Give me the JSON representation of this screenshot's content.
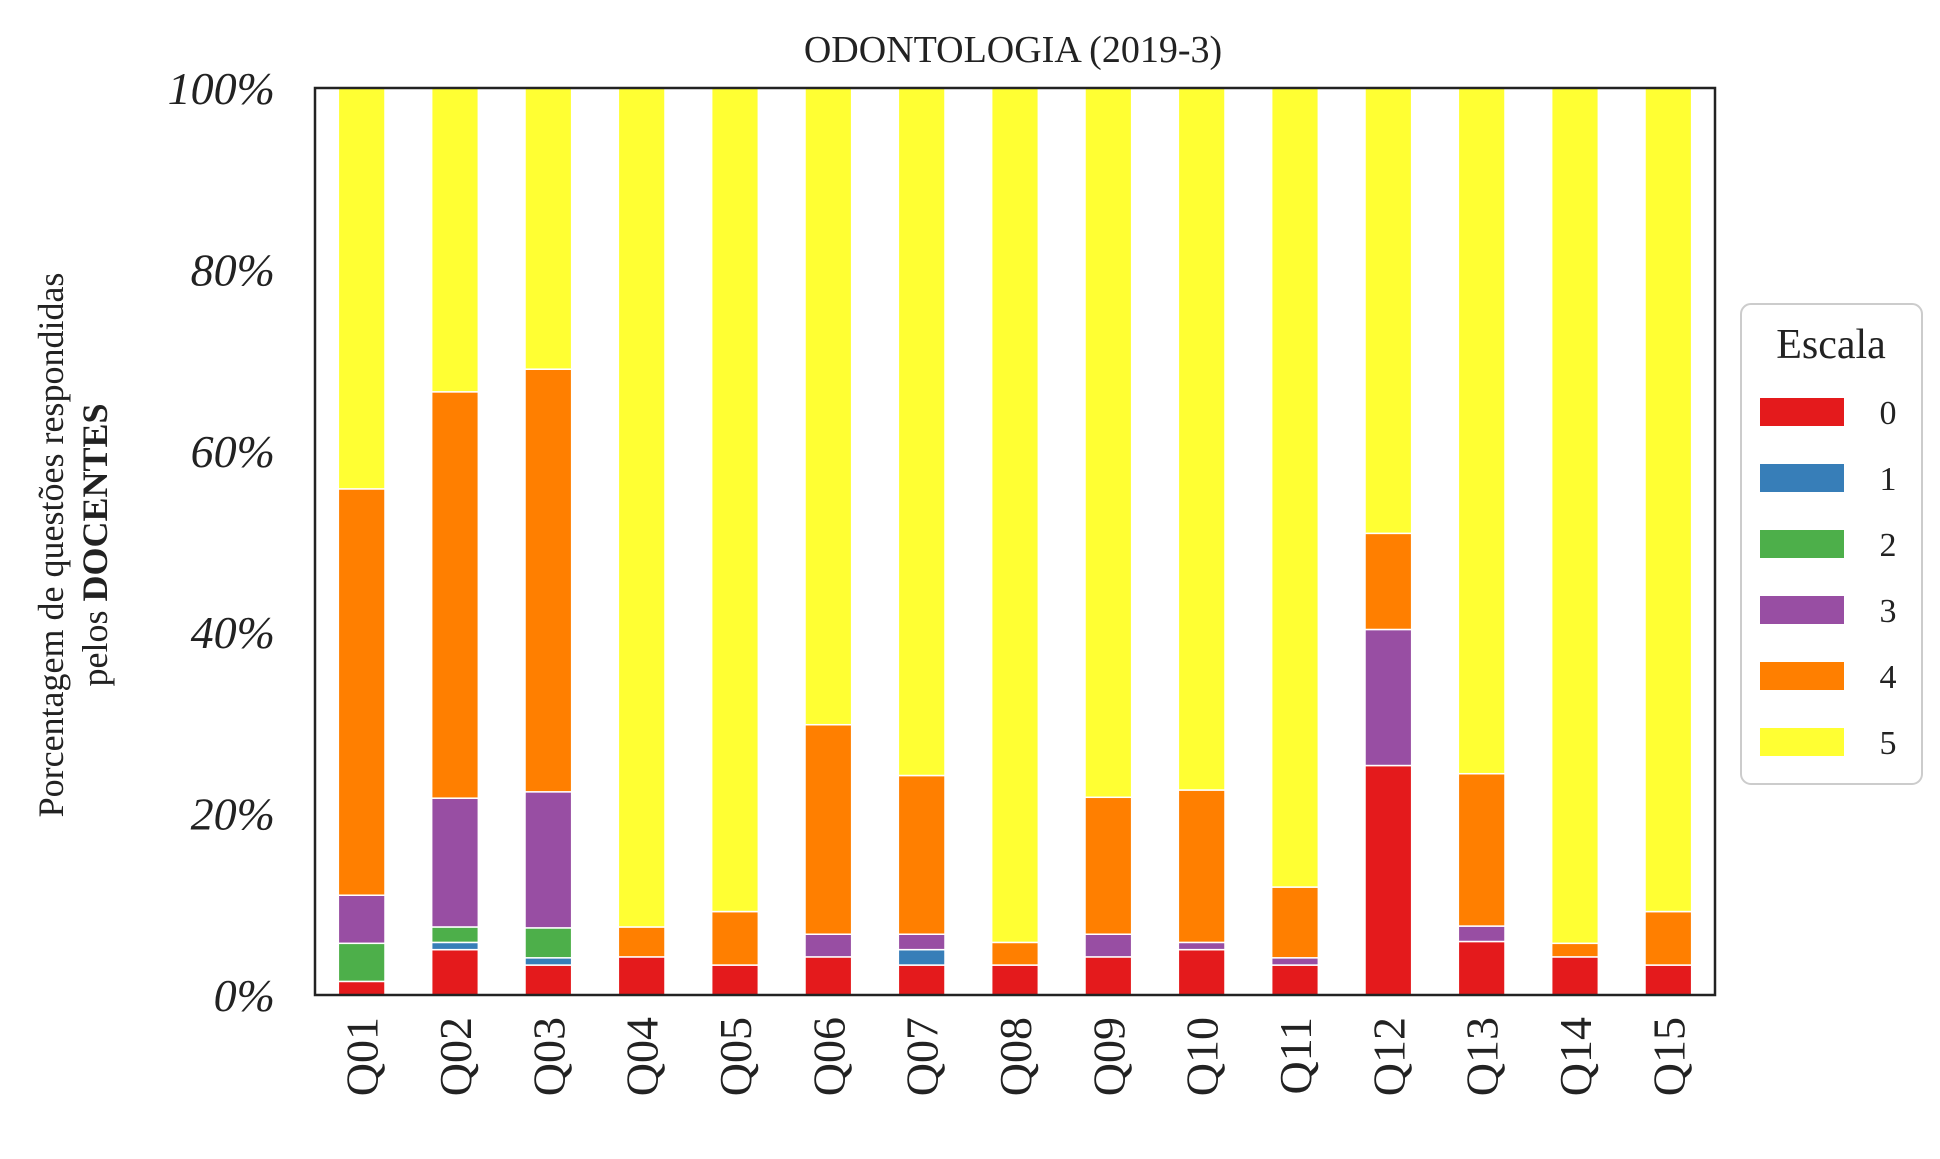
{
  "chart_data": {
    "type": "bar",
    "stacked": true,
    "title": "ODONTOLOGIA (2019-3)",
    "ylabel_line1": "Porcentagem de questões respondidas",
    "ylabel_line2_prefix": "pelos ",
    "ylabel_line2_bold": "DOCENTES",
    "ylim": [
      0,
      100
    ],
    "yticks": [
      "0%",
      "20%",
      "40%",
      "60%",
      "80%",
      "100%"
    ],
    "categories": [
      "Q01",
      "Q02",
      "Q03",
      "Q04",
      "Q05",
      "Q06",
      "Q07",
      "Q08",
      "Q09",
      "Q10",
      "Q11",
      "Q12",
      "Q13",
      "Q14",
      "Q15"
    ],
    "legend": {
      "title": "Escala",
      "placement": "right"
    },
    "series": [
      {
        "name": "0",
        "color": "#e41a1c",
        "values": [
          1.5,
          5.0,
          3.3,
          4.2,
          3.3,
          4.2,
          3.3,
          3.3,
          4.2,
          5.0,
          3.3,
          25.3,
          5.9,
          4.2,
          3.3
        ]
      },
      {
        "name": "1",
        "color": "#377eb8",
        "values": [
          0,
          0.8,
          0.8,
          0,
          0,
          0,
          1.7,
          0,
          0,
          0,
          0,
          0,
          0,
          0,
          0
        ]
      },
      {
        "name": "2",
        "color": "#4daf4a",
        "values": [
          4.2,
          1.7,
          3.3,
          0,
          0,
          0,
          0,
          0,
          0,
          0,
          0,
          0,
          0,
          0,
          0
        ]
      },
      {
        "name": "3",
        "color": "#984ea3",
        "values": [
          5.3,
          14.2,
          15.0,
          0,
          0,
          2.5,
          1.7,
          0,
          2.5,
          0.8,
          0.8,
          15.0,
          1.7,
          0,
          0
        ]
      },
      {
        "name": "4",
        "color": "#ff7f00",
        "values": [
          44.8,
          44.8,
          46.6,
          3.3,
          5.9,
          23.1,
          17.5,
          2.5,
          15.1,
          16.8,
          7.8,
          10.6,
          16.8,
          1.5,
          5.9
        ]
      },
      {
        "name": "5",
        "color": "#ffff33",
        "values": [
          44.2,
          33.5,
          31.0,
          92.5,
          90.8,
          70.2,
          75.8,
          94.2,
          78.2,
          77.4,
          88.1,
          49.1,
          75.6,
          94.3,
          90.8
        ]
      }
    ]
  }
}
